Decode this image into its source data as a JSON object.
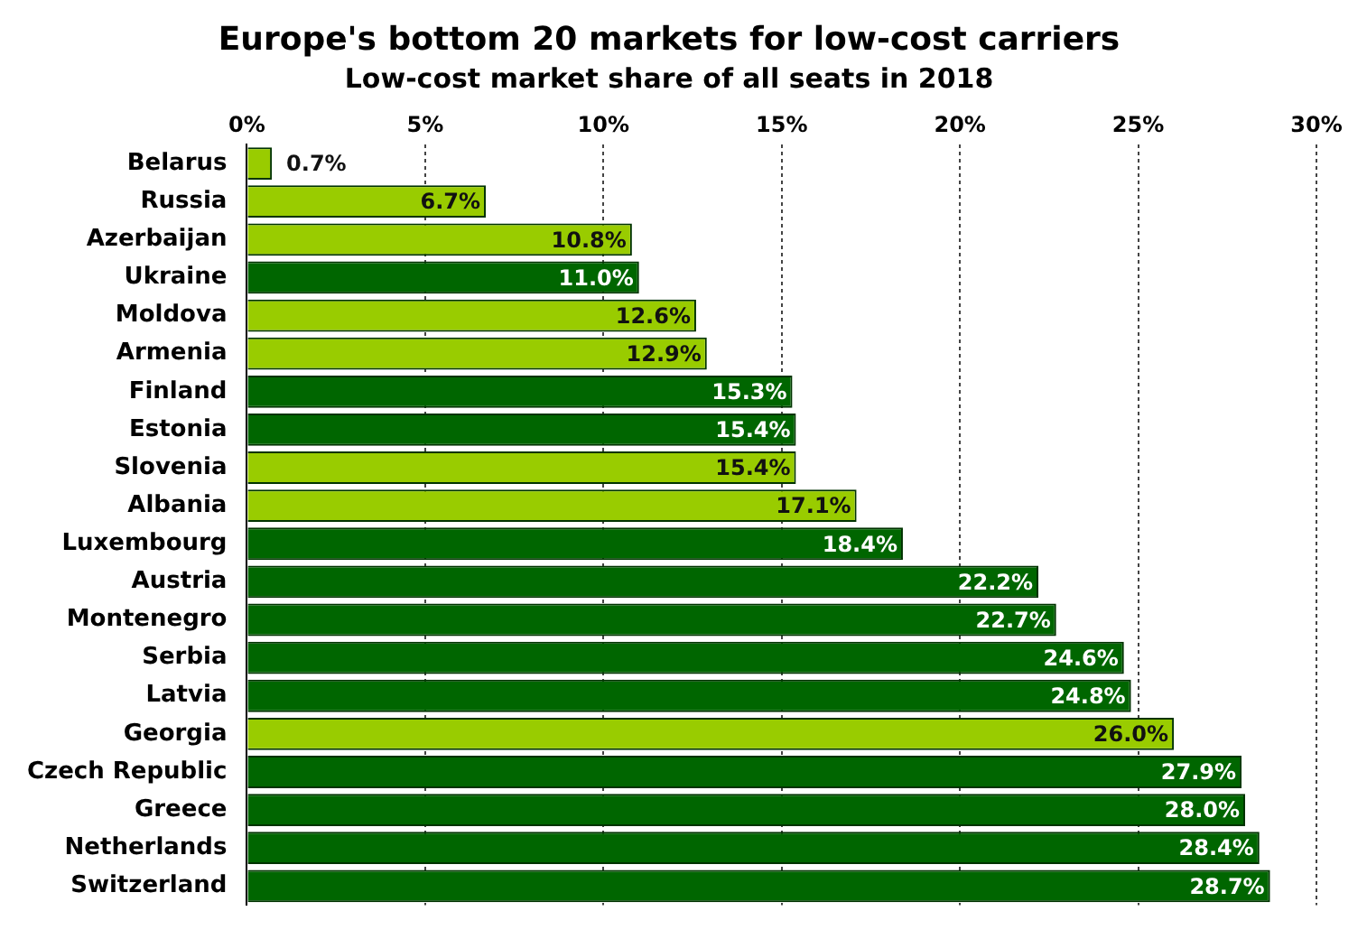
{
  "chart_data": {
    "type": "bar",
    "orientation": "horizontal",
    "title": "Europe's bottom 20 markets for low-cost carriers",
    "subtitle": "Low-cost market share of all seats in 2018",
    "categories": [
      "Belarus",
      "Russia",
      "Azerbaijan",
      "Ukraine",
      "Moldova",
      "Armenia",
      "Finland",
      "Estonia",
      "Slovenia",
      "Albania",
      "Luxembourg",
      "Austria",
      "Montenegro",
      "Serbia",
      "Latvia",
      "Georgia",
      "Czech Republic",
      "Greece",
      "Netherlands",
      "Switzerland"
    ],
    "values": [
      0.7,
      6.7,
      10.8,
      11.0,
      12.6,
      12.9,
      15.3,
      15.4,
      15.4,
      17.1,
      18.4,
      22.2,
      22.7,
      24.6,
      24.8,
      26.0,
      27.9,
      28.0,
      28.4,
      28.7
    ],
    "colors": [
      "#99cc00",
      "#99cc00",
      "#99cc00",
      "#006600",
      "#99cc00",
      "#99cc00",
      "#006600",
      "#006600",
      "#99cc00",
      "#99cc00",
      "#006600",
      "#006600",
      "#006600",
      "#006600",
      "#006600",
      "#99cc00",
      "#006600",
      "#006600",
      "#006600",
      "#006600"
    ],
    "value_labels": [
      "0.7%",
      "6.7%",
      "10.8%",
      "11.0%",
      "12.6%",
      "12.9%",
      "15.3%",
      "15.4%",
      "15.4%",
      "17.1%",
      "18.4%",
      "22.2%",
      "22.7%",
      "24.6%",
      "24.8%",
      "26.0%",
      "27.9%",
      "28.0%",
      "28.4%",
      "28.7%"
    ],
    "xlim": [
      0,
      30
    ],
    "xticks": [
      {
        "value": 0,
        "label": "0%"
      },
      {
        "value": 5,
        "label": "5%"
      },
      {
        "value": 10,
        "label": "10%"
      },
      {
        "value": 15,
        "label": "15%"
      },
      {
        "value": 20,
        "label": "20%"
      },
      {
        "value": 25,
        "label": "25%"
      },
      {
        "value": 30,
        "label": "30%"
      }
    ],
    "grid": "x",
    "legend": false
  }
}
